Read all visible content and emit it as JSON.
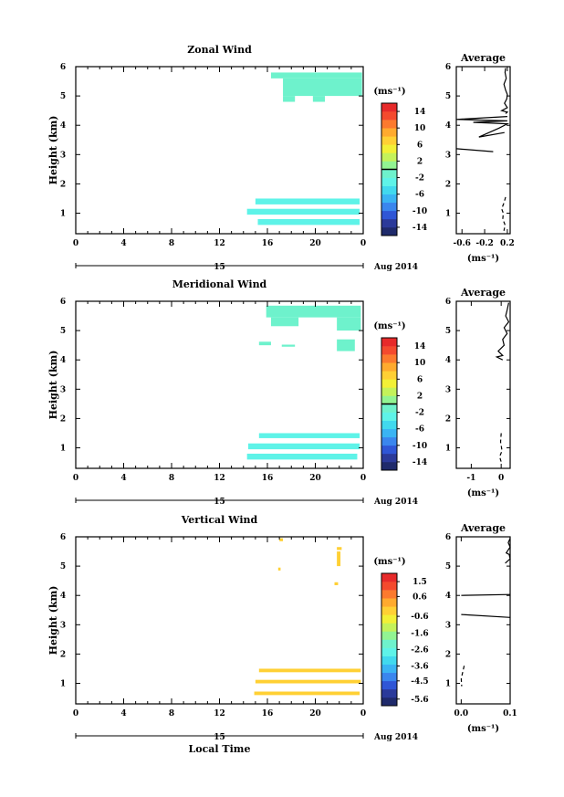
{
  "chart_data": [
    {
      "type": "heatmap",
      "title": "Zonal Wind",
      "ylabel": "Height (km)",
      "unit_label": "(ms⁻¹)",
      "xticks": [
        "0",
        "4",
        "8",
        "12",
        "16",
        "20",
        "0"
      ],
      "day_label": "15",
      "month_label": "Aug 2014",
      "yticks": [
        "1",
        "2",
        "3",
        "4",
        "5",
        "6"
      ],
      "ylim": [
        0.3,
        6.0
      ],
      "xlim": [
        0,
        24
      ],
      "colorbar": {
        "ticks": [
          "14",
          "10",
          "6",
          "2",
          "-2",
          "-6",
          "-10",
          "-14"
        ],
        "range": [
          -16,
          16
        ],
        "zero_line": 0
      },
      "filled_color": "#6ef2cc",
      "filled_color_low": "#5ef3e8",
      "regions": [
        {
          "t0": 16.3,
          "t1": 23.9,
          "h0": 5.6,
          "h1": 5.8
        },
        {
          "t0": 17.3,
          "t1": 23.9,
          "h0": 5.0,
          "h1": 5.6
        },
        {
          "t0": 17.3,
          "t1": 18.3,
          "h0": 4.8,
          "h1": 5.0
        },
        {
          "t0": 19.8,
          "t1": 20.8,
          "h0": 4.8,
          "h1": 5.0
        },
        {
          "t0": 15.0,
          "t1": 23.7,
          "h0": 1.3,
          "h1": 1.5
        },
        {
          "t0": 14.3,
          "t1": 23.7,
          "h0": 0.95,
          "h1": 1.15
        },
        {
          "t0": 15.2,
          "t1": 23.7,
          "h0": 0.6,
          "h1": 0.8
        }
      ],
      "profile": {
        "title": "Average",
        "xticks": [
          "-0.6",
          "-0.2",
          "0.2"
        ],
        "xlim": [
          -0.7,
          0.25
        ],
        "xlabel": "(ms⁻¹)",
        "segments": [
          {
            "style": "solid",
            "points": [
              [
                0.17,
                5.95
              ],
              [
                0.16,
                5.8
              ],
              [
                0.18,
                5.6
              ],
              [
                0.14,
                5.4
              ],
              [
                0.17,
                5.2
              ],
              [
                0.2,
                5.05
              ],
              [
                0.19,
                4.9
              ],
              [
                0.15,
                4.75
              ],
              [
                0.2,
                4.6
              ],
              [
                0.1,
                4.5
              ],
              [
                0.2,
                4.45
              ],
              [
                0.17,
                4.4
              ]
            ]
          },
          {
            "style": "solid",
            "points": [
              [
                0.2,
                4.3
              ],
              [
                -0.7,
                4.2
              ],
              [
                0.2,
                4.15
              ],
              [
                -0.4,
                4.1
              ],
              [
                0.2,
                4.05
              ],
              [
                0.05,
                3.9
              ],
              [
                -0.3,
                3.6
              ],
              [
                0.15,
                3.75
              ]
            ]
          },
          {
            "style": "solid",
            "points": [
              [
                -0.7,
                3.2
              ],
              [
                -0.05,
                3.1
              ]
            ]
          },
          {
            "style": "dashed",
            "points": [
              [
                0.17,
                1.55
              ],
              [
                0.14,
                1.35
              ],
              [
                0.1,
                1.15
              ],
              [
                0.13,
                1.0
              ],
              [
                0.12,
                0.8
              ],
              [
                0.16,
                0.6
              ],
              [
                0.14,
                0.4
              ]
            ]
          }
        ]
      }
    },
    {
      "type": "heatmap",
      "title": "Meridional Wind",
      "ylabel": "Height (km)",
      "unit_label": "(ms⁻¹)",
      "xticks": [
        "0",
        "4",
        "8",
        "12",
        "16",
        "20",
        "0"
      ],
      "day_label": "15",
      "month_label": "Aug 2014",
      "yticks": [
        "1",
        "2",
        "3",
        "4",
        "5",
        "6"
      ],
      "ylim": [
        0.3,
        6.0
      ],
      "xlim": [
        0,
        24
      ],
      "colorbar": {
        "ticks": [
          "14",
          "10",
          "6",
          "2",
          "-2",
          "-6",
          "-10",
          "-14"
        ],
        "range": [
          -16,
          16
        ],
        "zero_line": 0
      },
      "filled_color": "#6ef2cc",
      "filled_color_low": "#5ef3e8",
      "regions": [
        {
          "t0": 15.9,
          "t1": 23.8,
          "h0": 5.45,
          "h1": 5.85
        },
        {
          "t0": 16.3,
          "t1": 18.6,
          "h0": 5.15,
          "h1": 5.45
        },
        {
          "t0": 21.8,
          "t1": 23.8,
          "h0": 5.0,
          "h1": 5.45
        },
        {
          "t0": 15.3,
          "t1": 16.3,
          "h0": 4.5,
          "h1": 4.62
        },
        {
          "t0": 17.2,
          "t1": 18.3,
          "h0": 4.45,
          "h1": 4.52
        },
        {
          "t0": 21.8,
          "t1": 23.3,
          "h0": 4.3,
          "h1": 4.7
        },
        {
          "t0": 15.3,
          "t1": 23.7,
          "h0": 1.33,
          "h1": 1.5
        },
        {
          "t0": 14.4,
          "t1": 23.7,
          "h0": 0.95,
          "h1": 1.15
        },
        {
          "t0": 14.3,
          "t1": 23.5,
          "h0": 0.6,
          "h1": 0.8
        }
      ],
      "profile": {
        "title": "Average",
        "xticks": [
          "-1",
          "0"
        ],
        "xlim": [
          -1.5,
          0.3
        ],
        "xlabel": "(ms⁻¹)",
        "segments": [
          {
            "style": "solid",
            "points": [
              [
                0.25,
                5.95
              ],
              [
                0.2,
                5.7
              ],
              [
                0.15,
                5.5
              ],
              [
                0.25,
                5.3
              ],
              [
                0.1,
                5.1
              ],
              [
                0.2,
                4.9
              ],
              [
                0.05,
                4.7
              ],
              [
                0.1,
                4.5
              ],
              [
                -0.1,
                4.3
              ],
              [
                0.05,
                4.15
              ],
              [
                -0.15,
                4.1
              ],
              [
                0.05,
                4.0
              ]
            ]
          },
          {
            "style": "dashed",
            "points": [
              [
                0.0,
                1.5
              ],
              [
                -0.02,
                1.2
              ],
              [
                0.03,
                0.9
              ],
              [
                -0.05,
                0.7
              ],
              [
                0.02,
                0.45
              ]
            ]
          }
        ]
      }
    },
    {
      "type": "heatmap",
      "title": "Vertical Wind",
      "ylabel": "Height (km)",
      "xlabel": "Local Time",
      "unit_label": "(ms⁻¹)",
      "xticks": [
        "0",
        "4",
        "8",
        "12",
        "16",
        "20",
        "0"
      ],
      "day_label": "15",
      "month_label": "Aug 2014",
      "yticks": [
        "1",
        "2",
        "3",
        "4",
        "5",
        "6"
      ],
      "ylim": [
        0.3,
        6.0
      ],
      "xlim": [
        0,
        24
      ],
      "colorbar": {
        "ticks": [
          "1.5",
          "0.6",
          "-0.6",
          "-1.6",
          "-2.6",
          "-3.6",
          "-4.5",
          "-5.6"
        ],
        "range": [
          -6.0,
          2.0
        ],
        "zero_line": null
      },
      "filled_color": "#ffd034",
      "filled_color_low": "#ffd034",
      "regions": [
        {
          "t0": 17.0,
          "t1": 17.3,
          "h0": 5.85,
          "h1": 5.95
        },
        {
          "t0": 21.8,
          "t1": 22.2,
          "h0": 5.55,
          "h1": 5.65
        },
        {
          "t0": 21.8,
          "t1": 22.1,
          "h0": 5.0,
          "h1": 5.5
        },
        {
          "t0": 16.9,
          "t1": 17.1,
          "h0": 4.85,
          "h1": 4.95
        },
        {
          "t0": 21.6,
          "t1": 21.9,
          "h0": 4.35,
          "h1": 4.45
        },
        {
          "t0": 15.3,
          "t1": 23.8,
          "h0": 1.38,
          "h1": 1.5
        },
        {
          "t0": 15.0,
          "t1": 23.8,
          "h0": 1.0,
          "h1": 1.12
        },
        {
          "t0": 14.9,
          "t1": 23.7,
          "h0": 0.6,
          "h1": 0.72
        }
      ],
      "profile": {
        "title": "Average",
        "xticks": [
          "0.0",
          "0.1"
        ],
        "xlim": [
          -0.01,
          0.1
        ],
        "xlabel": "(ms⁻¹)",
        "segments": [
          {
            "style": "solid",
            "points": [
              [
                0.1,
                5.95
              ],
              [
                0.096,
                5.8
              ],
              [
                0.1,
                5.65
              ],
              [
                0.092,
                5.45
              ],
              [
                0.098,
                5.4
              ],
              [
                0.1,
                5.25
              ],
              [
                0.09,
                5.1
              ]
            ]
          },
          {
            "style": "solid",
            "points": [
              [
                0.0,
                4.0
              ],
              [
                0.1,
                4.03
              ]
            ]
          },
          {
            "style": "solid",
            "points": [
              [
                0.0,
                3.35
              ],
              [
                0.1,
                3.25
              ]
            ]
          },
          {
            "style": "dashed",
            "points": [
              [
                0.006,
                1.6
              ],
              [
                0.002,
                1.3
              ],
              [
                0.0,
                1.15
              ],
              [
                0.001,
                0.9
              ]
            ]
          }
        ]
      }
    }
  ]
}
